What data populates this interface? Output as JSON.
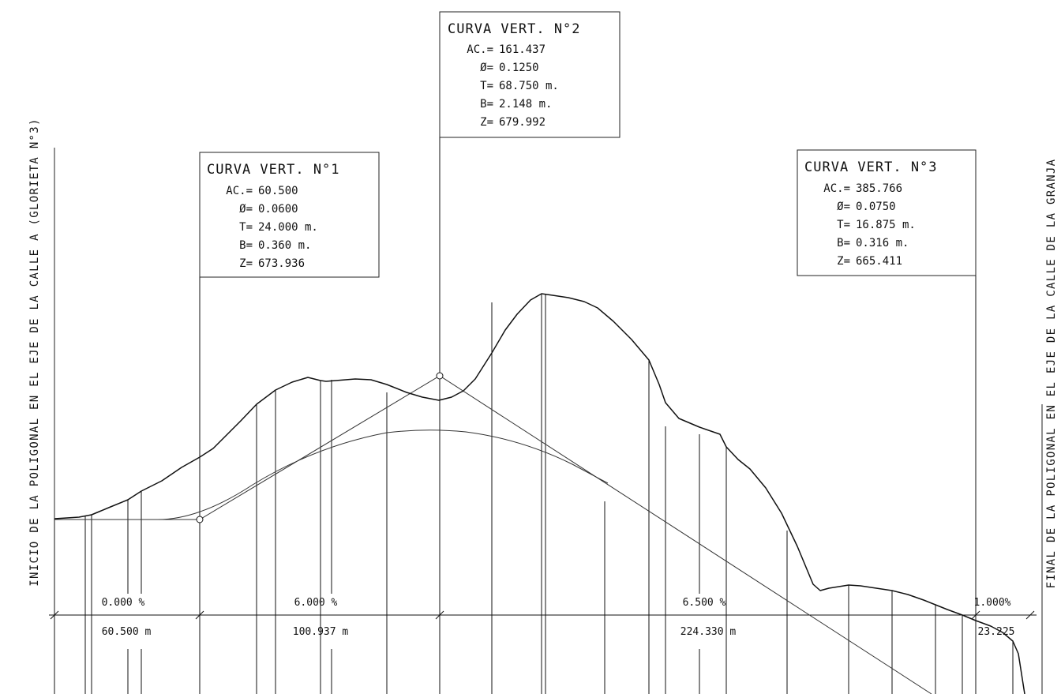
{
  "start_label": "INICIO DE LA POLIGONAL EN EL EJE DE LA CALLE A (GLORIETA N°3)",
  "end_label": "FINAL DE LA POLIGONAL EN EL EJE DE LA CALLE DE LA GRANJA",
  "curves": [
    {
      "title": "CURVA VERT. N°1",
      "rows": [
        {
          "k": "AC.=",
          "v": "60.500"
        },
        {
          "k": "Ø=",
          "v": "0.0600"
        },
        {
          "k": "T=",
          "v": "24.000 m."
        },
        {
          "k": "B=",
          "v": "0.360 m."
        },
        {
          "k": "Z=",
          "v": "673.936"
        }
      ]
    },
    {
      "title": "CURVA VERT. N°2",
      "rows": [
        {
          "k": "AC.=",
          "v": "161.437"
        },
        {
          "k": "Ø=",
          "v": "0.1250"
        },
        {
          "k": "T=",
          "v": "68.750 m."
        },
        {
          "k": "B=",
          "v": "2.148 m."
        },
        {
          "k": "Z=",
          "v": "679.992"
        }
      ]
    },
    {
      "title": "CURVA VERT. N°3",
      "rows": [
        {
          "k": "AC.=",
          "v": "385.766"
        },
        {
          "k": "Ø=",
          "v": "0.0750"
        },
        {
          "k": "T=",
          "v": "16.875 m."
        },
        {
          "k": "B=",
          "v": "0.316 m."
        },
        {
          "k": "Z=",
          "v": "665.411"
        }
      ]
    }
  ],
  "segments": [
    {
      "grade": "0.000 %",
      "length": "60.500 m"
    },
    {
      "grade": "6.000 %",
      "length": "100.937 m"
    },
    {
      "grade": "6.500 %",
      "length": "224.330 m"
    },
    {
      "grade": "1.000%",
      "length": "23.225"
    }
  ],
  "colors": {
    "terrain": "#111111",
    "grade_line": "#333333",
    "frame": "#222222"
  }
}
